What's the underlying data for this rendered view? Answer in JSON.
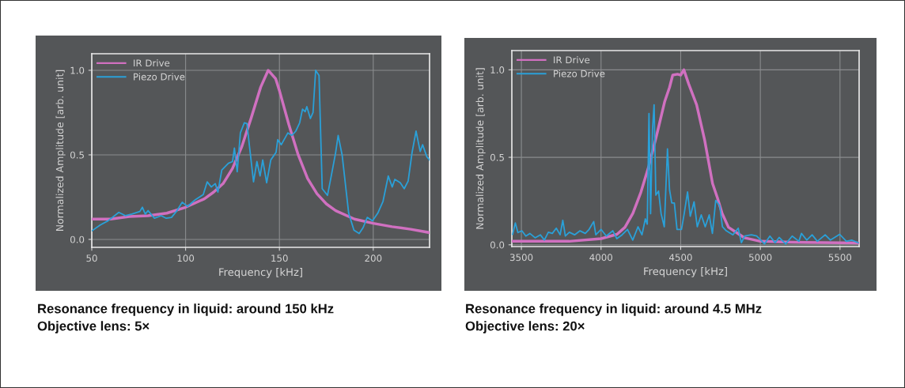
{
  "chart_data": [
    {
      "type": "line",
      "xlabel": "Frequency [kHz]",
      "ylabel": "Normalized Amplitude [arb. unit]",
      "xlim": [
        50,
        230
      ],
      "ylim": [
        -0.047,
        1.098
      ],
      "xticks": [
        50,
        100,
        150,
        200
      ],
      "yticks": [
        {
          "value": 0,
          "label": "0.0"
        },
        {
          "value": 0.5,
          "label": "0.5"
        },
        {
          "value": 1.0,
          "label": "1.0"
        }
      ],
      "grid": true,
      "legend": "top left",
      "line_style": "solid",
      "marker": "none",
      "annotations": [
        "Resonance frequency in liquid: around 150 kHz",
        "Objective lens: 5×"
      ],
      "series": [
        {
          "name": "IR Drive",
          "color": "#d070c0",
          "x": [
            50,
            60,
            70,
            80,
            90,
            100,
            110,
            115,
            120,
            125,
            130,
            135,
            140,
            144,
            148,
            150,
            155,
            160,
            165,
            170,
            175,
            180,
            190,
            200,
            210,
            220,
            230
          ],
          "values": [
            0.12,
            0.12,
            0.135,
            0.14,
            0.155,
            0.19,
            0.24,
            0.28,
            0.33,
            0.42,
            0.55,
            0.72,
            0.9,
            1.0,
            0.95,
            0.88,
            0.68,
            0.5,
            0.36,
            0.27,
            0.21,
            0.17,
            0.12,
            0.095,
            0.075,
            0.06,
            0.04
          ]
        },
        {
          "name": "Piezo Drive",
          "color": "#2aa0d8",
          "x": [
            50,
            54.5,
            58.7,
            64.4,
            68,
            71.4,
            75.6,
            77,
            78.5,
            80,
            83.4,
            87,
            89.7,
            92.5,
            95.4,
            98.2,
            101,
            105.2,
            109.4,
            111.5,
            113.7,
            115.8,
            117.2,
            119.3,
            122.8,
            125,
            126,
            127.5,
            129.2,
            131.3,
            132.7,
            134.1,
            136.2,
            138,
            139.7,
            141.1,
            143.2,
            145.4,
            148.2,
            149.1,
            151,
            154.5,
            156.6,
            158.7,
            160.8,
            162.3,
            163.7,
            164.6,
            166.5,
            167.9,
            169.3,
            171.1,
            172.8,
            175.6,
            177.7,
            179.9,
            181.3,
            183.4,
            186.9,
            189.7,
            192.5,
            194.6,
            196.8,
            199.6,
            202.4,
            205.2,
            208,
            210.1,
            211.5,
            214.4,
            216.5,
            218.6,
            220.7,
            222.8,
            225,
            226.3,
            228.5,
            230
          ],
          "values": [
            0.05,
            0.085,
            0.11,
            0.16,
            0.14,
            0.15,
            0.165,
            0.19,
            0.15,
            0.17,
            0.125,
            0.14,
            0.125,
            0.13,
            0.17,
            0.22,
            0.195,
            0.235,
            0.265,
            0.34,
            0.31,
            0.33,
            0.28,
            0.41,
            0.45,
            0.46,
            0.54,
            0.4,
            0.63,
            0.69,
            0.685,
            0.545,
            0.34,
            0.46,
            0.375,
            0.47,
            0.335,
            0.47,
            0.515,
            0.59,
            0.56,
            0.63,
            0.615,
            0.64,
            0.69,
            0.77,
            0.755,
            0.785,
            0.715,
            0.75,
            1.0,
            0.97,
            0.3,
            0.26,
            0.38,
            0.51,
            0.615,
            0.5,
            0.155,
            0.055,
            0.035,
            0.07,
            0.13,
            0.11,
            0.155,
            0.225,
            0.375,
            0.31,
            0.355,
            0.335,
            0.3,
            0.345,
            0.515,
            0.64,
            0.52,
            0.56,
            0.49,
            0.47
          ]
        }
      ]
    },
    {
      "type": "line",
      "xlabel": "Frequency [kHz]",
      "ylabel": "Normalized Amplitude [arb. unit]",
      "xlim": [
        3440,
        5620
      ],
      "ylim": [
        -0.01,
        1.11
      ],
      "xticks": [
        3500,
        4000,
        4500,
        5000,
        5500
      ],
      "yticks": [
        {
          "value": 0,
          "label": "0.0"
        },
        {
          "value": 0.5,
          "label": "0.5"
        },
        {
          "value": 1.0,
          "label": "1.0"
        }
      ],
      "grid": true,
      "legend": "top left",
      "line_style": "solid",
      "marker": "none",
      "annotations": [
        "Resonance frequency in liquid: around 4.5 MHz",
        "Objective lens: 20×"
      ],
      "series": [
        {
          "name": "IR Drive",
          "color": "#d070c0",
          "x": [
            3440,
            3800,
            4000,
            4100,
            4150,
            4200,
            4250,
            4300,
            4350,
            4400,
            4430,
            4450,
            4480,
            4500,
            4520,
            4550,
            4600,
            4650,
            4700,
            4730,
            4760,
            4800,
            4850,
            4900,
            5000,
            5200,
            5620
          ],
          "values": [
            0.02,
            0.02,
            0.035,
            0.06,
            0.1,
            0.18,
            0.3,
            0.45,
            0.63,
            0.82,
            0.9,
            0.97,
            0.975,
            0.97,
            1.0,
            0.92,
            0.8,
            0.6,
            0.35,
            0.27,
            0.18,
            0.1,
            0.07,
            0.04,
            0.02,
            0.015,
            0.01
          ]
        },
        {
          "name": "Piezo Drive",
          "color": "#2aa0d8",
          "x": [
            3445,
            3462,
            3478,
            3503,
            3528,
            3553,
            3586,
            3619,
            3644,
            3669,
            3694,
            3719,
            3743,
            3760,
            3776,
            3801,
            3834,
            3868,
            3901,
            3925,
            3954,
            3967,
            4000,
            4033,
            4074,
            4099,
            4132,
            4166,
            4199,
            4232,
            4257,
            4278,
            4290,
            4301,
            4311,
            4323,
            4333,
            4344,
            4361,
            4377,
            4397,
            4417,
            4430,
            4444,
            4460,
            4477,
            4505,
            4522,
            4543,
            4560,
            4584,
            4604,
            4629,
            4654,
            4679,
            4699,
            4720,
            4745,
            4762,
            4786,
            4828,
            4861,
            4881,
            4902,
            4944,
            4977,
            5026,
            5060,
            5093,
            5118,
            5159,
            5200,
            5242,
            5258,
            5291,
            5325,
            5358,
            5407,
            5440,
            5498,
            5540,
            5573,
            5614
          ],
          "values": [
            0.06,
            0.125,
            0.07,
            0.08,
            0.05,
            0.065,
            0.04,
            0.057,
            0.027,
            0.072,
            0.065,
            0.095,
            0.057,
            0.14,
            0.05,
            0.072,
            0.057,
            0.08,
            0.065,
            0.088,
            0.133,
            0.057,
            0.088,
            0.05,
            0.08,
            0.035,
            0.057,
            0.088,
            0.027,
            0.103,
            0.057,
            0.148,
            0.118,
            0.75,
            0.178,
            0.66,
            0.8,
            0.284,
            0.307,
            0.178,
            0.103,
            0.548,
            0.314,
            0.239,
            0.239,
            0.088,
            0.088,
            0.178,
            0.302,
            0.163,
            0.246,
            0.103,
            0.171,
            0.103,
            0.171,
            0.065,
            0.254,
            0.224,
            0.103,
            0.08,
            0.057,
            0.095,
            0.012,
            0.05,
            0.057,
            0.05,
            0.005,
            0.05,
            0.012,
            0.042,
            0.005,
            0.05,
            0.02,
            0.065,
            0.027,
            0.057,
            0.02,
            0.057,
            0.027,
            0.06,
            0.02,
            0.027,
            0.012
          ]
        }
      ]
    }
  ]
}
